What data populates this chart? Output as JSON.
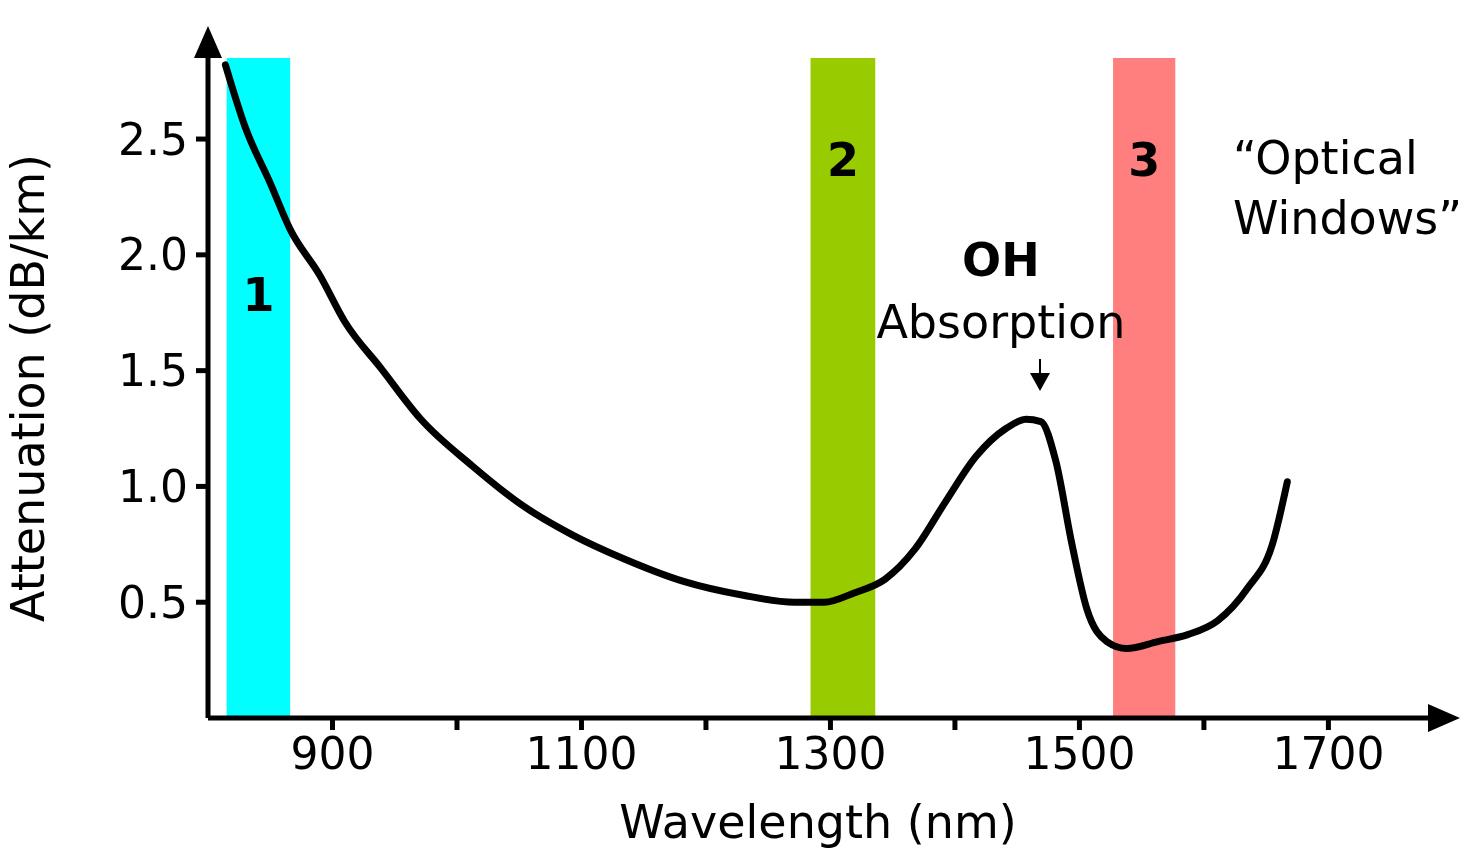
{
  "chart_data": {
    "type": "line",
    "xlabel": "Wavelength (nm)",
    "ylabel": "Attenuation (dB/km)",
    "x": [
      814,
      830,
      850,
      866,
      890,
      910,
      939,
      971,
      1012,
      1052,
      1093,
      1133,
      1182,
      1230,
      1271,
      1295,
      1319,
      1344,
      1368,
      1392,
      1417,
      1441,
      1457,
      1469,
      1481,
      1494,
      1506,
      1522,
      1538,
      1563,
      1587,
      1611,
      1635,
      1655,
      1667
    ],
    "series": [
      {
        "color": "#000000",
        "values": [
          2.82,
          2.55,
          2.31,
          2.11,
          1.91,
          1.71,
          1.51,
          1.29,
          1.09,
          0.92,
          0.79,
          0.69,
          0.59,
          0.53,
          0.5,
          0.5,
          0.54,
          0.6,
          0.73,
          0.93,
          1.13,
          1.25,
          1.29,
          1.28,
          1.11,
          0.75,
          0.47,
          0.33,
          0.3,
          0.33,
          0.36,
          0.42,
          0.56,
          0.75,
          1.02
        ]
      }
    ],
    "xlim": [
      800,
      1780
    ],
    "xticks": [
      900,
      {
        "value": 1000,
        "label": null
      },
      1100,
      {
        "value": 1200,
        "label": null
      },
      1300,
      {
        "value": 1400,
        "label": null
      },
      1500,
      {
        "value": 1600,
        "label": null
      },
      1700
    ],
    "ylim": [
      0,
      2.85
    ],
    "yticks": [
      0.5,
      {
        "value": 1,
        "label": "1.0"
      },
      1.5,
      {
        "value": 2,
        "label": "2.0"
      },
      2.5
    ],
    "marker": "none",
    "line_style": "solid",
    "bands": [
      {
        "axis": "x",
        "from": 815,
        "to": 866,
        "label": "1",
        "color": "#00ffff"
      },
      {
        "axis": "x",
        "from": 1284,
        "to": 1336,
        "label": "2",
        "color": "#99cc00"
      },
      {
        "axis": "x",
        "from": 1527,
        "to": 1577,
        "label": "3",
        "color": "#ff7f7f"
      }
    ],
    "annotations": [
      {
        "text": "OH\nAbsorption",
        "x": 1457,
        "y": 1.29
      },
      "“Optical Windows”"
    ]
  }
}
